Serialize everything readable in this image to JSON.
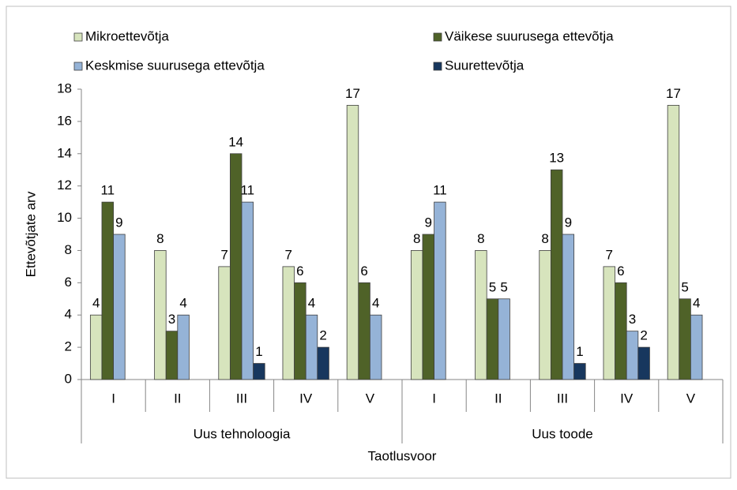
{
  "chart_data": {
    "type": "bar",
    "category_groups": [
      {
        "name": "Uus tehnoloogia",
        "categories": [
          "I",
          "II",
          "III",
          "IV",
          "V"
        ]
      },
      {
        "name": "Uus toode",
        "categories": [
          "I",
          "II",
          "III",
          "IV",
          "V"
        ]
      }
    ],
    "xlabel": "Taotlusvoor",
    "ylabel": "Ettevõtjate arv",
    "ylim": [
      0,
      18
    ],
    "yticks": [
      0,
      2,
      4,
      6,
      8,
      10,
      12,
      14,
      16,
      18
    ],
    "grid": false,
    "legend": "top",
    "series": [
      {
        "name": "Mikroettevõtja",
        "color": "#d7e4bd",
        "values": [
          4,
          8,
          7,
          7,
          17,
          8,
          8,
          8,
          7,
          17
        ]
      },
      {
        "name": "Väikese suurusega ettevõtja",
        "color": "#4f6228",
        "values": [
          11,
          3,
          14,
          6,
          6,
          9,
          5,
          13,
          6,
          5
        ]
      },
      {
        "name": "Keskmise suurusega ettevõtja",
        "color": "#95b3d7",
        "values": [
          9,
          4,
          11,
          4,
          4,
          11,
          5,
          9,
          3,
          4
        ]
      },
      {
        "name": "Suurettevõtja",
        "color": "#17375e",
        "values": [
          0,
          0,
          1,
          2,
          0,
          0,
          0,
          1,
          2,
          0
        ]
      }
    ]
  }
}
